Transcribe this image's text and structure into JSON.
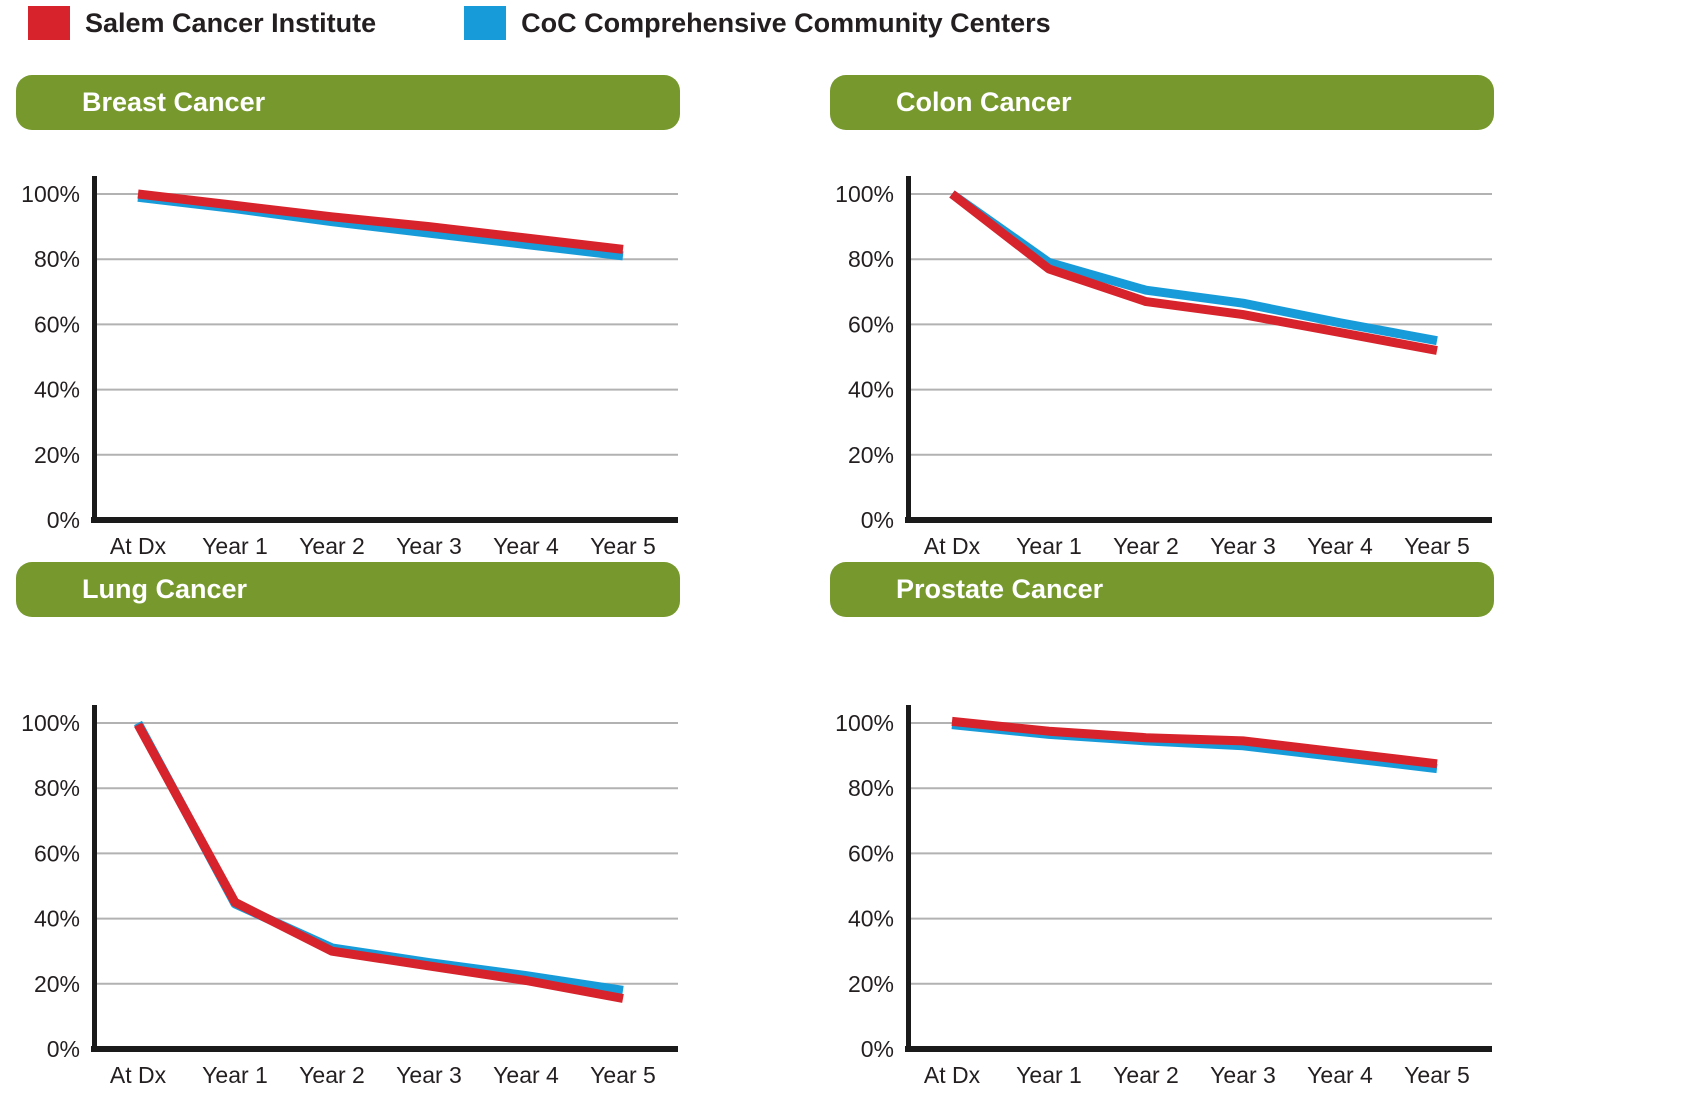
{
  "legend": {
    "items": [
      {
        "label": "Salem Cancer Institute",
        "color": "#d7232b"
      },
      {
        "label": "CoC Comprehensive Community Centers",
        "color": "#189cd9"
      }
    ]
  },
  "colors": {
    "header_green": "#76982d",
    "grid_gray": "#b2b2b2",
    "axis_black": "#1a1a1a",
    "salem_red": "#d7232b",
    "coc_blue": "#189cd9",
    "title_text": "#ffffff"
  },
  "axis": {
    "y_ticks": [
      "100%",
      "80%",
      "60%",
      "40%",
      "20%",
      "0%"
    ],
    "y_tick_values": [
      100,
      80,
      60,
      40,
      20,
      0
    ],
    "x_ticks": [
      "At Dx",
      "Year 1",
      "Year 2",
      "Year 3",
      "Year 4",
      "Year 5"
    ]
  },
  "chart_data": [
    {
      "type": "line",
      "title": "Breast Cancer",
      "x": [
        "At Dx",
        "Year 1",
        "Year 2",
        "Year 3",
        "Year 4",
        "Year 5"
      ],
      "ylim": [
        0,
        100
      ],
      "grid": true,
      "legend_position": "top-left-of-page",
      "series": [
        {
          "name": "Salem Cancer Institute",
          "color": "#d7232b",
          "values": [
            100,
            96.5,
            93,
            90,
            86.5,
            83
          ]
        },
        {
          "name": "CoC Comprehensive Community Centers",
          "color": "#189cd9",
          "values": [
            99,
            95.5,
            91.5,
            88,
            84.5,
            81
          ]
        }
      ]
    },
    {
      "type": "line",
      "title": "Colon Cancer",
      "x": [
        "At Dx",
        "Year 1",
        "Year 2",
        "Year 3",
        "Year 4",
        "Year 5"
      ],
      "ylim": [
        0,
        100
      ],
      "grid": true,
      "legend_position": "top-left-of-page",
      "series": [
        {
          "name": "Salem Cancer Institute",
          "color": "#d7232b",
          "values": [
            100,
            77,
            67,
            63,
            57.5,
            52
          ]
        },
        {
          "name": "CoC Comprehensive Community Centers",
          "color": "#189cd9",
          "values": [
            100,
            79,
            70.5,
            66.5,
            60.5,
            55
          ]
        }
      ]
    },
    {
      "type": "line",
      "title": "Lung Cancer",
      "x": [
        "At Dx",
        "Year 1",
        "Year 2",
        "Year 3",
        "Year 4",
        "Year 5"
      ],
      "ylim": [
        0,
        100
      ],
      "grid": true,
      "legend_position": "top-left-of-page",
      "series": [
        {
          "name": "Salem Cancer Institute",
          "color": "#d7232b",
          "values": [
            99.5,
            45,
            30,
            25.5,
            21,
            15.5
          ]
        },
        {
          "name": "CoC Comprehensive Community Centers",
          "color": "#189cd9",
          "values": [
            100,
            44.5,
            31,
            26.5,
            22.5,
            18
          ]
        }
      ]
    },
    {
      "type": "line",
      "title": "Prostate Cancer",
      "x": [
        "At Dx",
        "Year 1",
        "Year 2",
        "Year 3",
        "Year 4",
        "Year 5"
      ],
      "ylim": [
        0,
        100
      ],
      "grid": true,
      "legend_position": "top-left-of-page",
      "series": [
        {
          "name": "Salem Cancer Institute",
          "color": "#d7232b",
          "values": [
            100.5,
            97.5,
            95.5,
            94.5,
            91,
            87.5
          ]
        },
        {
          "name": "CoC Comprehensive Community Centers",
          "color": "#189cd9",
          "values": [
            99.5,
            96.5,
            94.5,
            93,
            89.5,
            86
          ]
        }
      ]
    }
  ]
}
